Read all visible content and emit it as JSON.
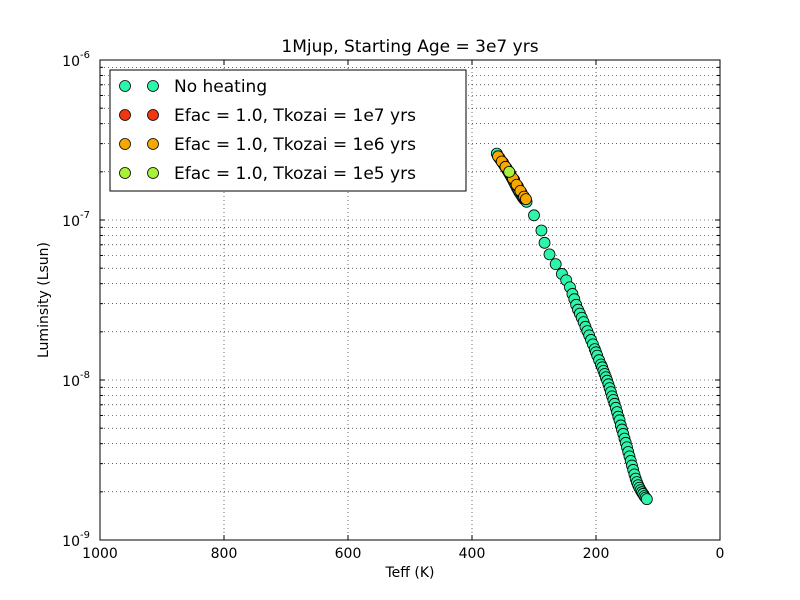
{
  "chart_data": {
    "type": "scatter",
    "title": "1Mjup, Starting Age = 3e7 yrs",
    "xlabel": "Teff (K)",
    "ylabel": "Luminsity (Lsun)",
    "xlim": [
      1000,
      0
    ],
    "ylim": [
      1e-09,
      1e-06
    ],
    "yscale": "log",
    "grid": true,
    "legend_position": "upper-left",
    "xticks": [
      1000,
      800,
      600,
      400,
      200,
      0
    ],
    "xtick_labels": [
      "1000",
      "800",
      "600",
      "400",
      "200",
      "0"
    ],
    "yticks": [
      1e-09,
      1e-08,
      1e-07,
      1e-06
    ],
    "ytick_labels": [
      {
        "base": "10",
        "exp": "-9"
      },
      {
        "base": "10",
        "exp": "-8"
      },
      {
        "base": "10",
        "exp": "-7"
      },
      {
        "base": "10",
        "exp": "-6"
      }
    ],
    "series": [
      {
        "name": "No heating",
        "color": "#2df5a9",
        "x": [
          360,
          358,
          356,
          354,
          352,
          350,
          348,
          346,
          344,
          342,
          340,
          338,
          336,
          334,
          332,
          330,
          328,
          326,
          324,
          322,
          320,
          318,
          316,
          314,
          312,
          300,
          288,
          283,
          275,
          265,
          255,
          248,
          242,
          238,
          235,
          232,
          229,
          226,
          223,
          220,
          217,
          214,
          211,
          208,
          205,
          202,
          200,
          198,
          195,
          192,
          190,
          188,
          186,
          184,
          182,
          180,
          178,
          176,
          174,
          172,
          170,
          168,
          166,
          164,
          162,
          160,
          158,
          156,
          154,
          152,
          150,
          148,
          146,
          144,
          142,
          140,
          138,
          136,
          134,
          132,
          130,
          128,
          126,
          124,
          122,
          120,
          118
        ],
        "y": [
          2.6e-07,
          2.5e-07,
          2.44e-07,
          2.38e-07,
          2.32e-07,
          2.26e-07,
          2.2e-07,
          2.14e-07,
          2.08e-07,
          2.02e-07,
          1.96e-07,
          1.9e-07,
          1.84e-07,
          1.78e-07,
          1.72e-07,
          1.66e-07,
          1.6e-07,
          1.55e-07,
          1.5e-07,
          1.46e-07,
          1.42e-07,
          1.38e-07,
          1.35e-07,
          1.33e-07,
          1.3e-07,
          1.07e-07,
          8.6e-08,
          7.2e-08,
          6.1e-08,
          5.3e-08,
          4.6e-08,
          4.2e-08,
          3.8e-08,
          3.45e-08,
          3.2e-08,
          2.95e-08,
          2.75e-08,
          2.6e-08,
          2.45e-08,
          2.3e-08,
          2.15e-08,
          2.02e-08,
          1.9e-08,
          1.78e-08,
          1.67e-08,
          1.56e-08,
          1.49e-08,
          1.42e-08,
          1.33e-08,
          1.25e-08,
          1.2e-08,
          1.14e-08,
          1.09e-08,
          1.04e-08,
          9.9e-09,
          9.4e-09,
          8.9e-09,
          8.4e-09,
          7.9e-09,
          7.5e-09,
          7.1e-09,
          6.7e-09,
          6.3e-09,
          5.9e-09,
          5.6e-09,
          5.2e-09,
          4.9e-09,
          4.6e-09,
          4.3e-09,
          4.05e-09,
          3.8e-09,
          3.55e-09,
          3.33e-09,
          3.12e-09,
          2.92e-09,
          2.74e-09,
          2.57e-09,
          2.42e-09,
          2.3e-09,
          2.2e-09,
          2.12e-09,
          2.05e-09,
          1.99e-09,
          1.94e-09,
          1.88e-09,
          1.84e-09,
          1.8e-09
        ]
      },
      {
        "name": "Efac = 1.0, Tkozai = 1e7 yrs",
        "color": "#ef3810",
        "x": [
          356,
          350,
          344,
          338,
          332,
          326,
          320,
          315
        ],
        "y": [
          2.45e-07,
          2.28e-07,
          2.1e-07,
          1.94e-07,
          1.78e-07,
          1.62e-07,
          1.48e-07,
          1.36e-07
        ]
      },
      {
        "name": "Efac = 1.0, Tkozai = 1e6 yrs",
        "color": "#f7a800",
        "x": [
          358,
          352,
          346,
          340,
          334,
          328,
          322,
          316,
          313
        ],
        "y": [
          2.5e-07,
          2.32e-07,
          2.15e-07,
          1.98e-07,
          1.82e-07,
          1.66e-07,
          1.52e-07,
          1.4e-07,
          1.35e-07
        ]
      },
      {
        "name": "Efac = 1.0, Tkozai = 1e5 yrs",
        "color": "#a6f23a",
        "x": [
          340
        ],
        "y": [
          2e-07
        ]
      }
    ]
  }
}
